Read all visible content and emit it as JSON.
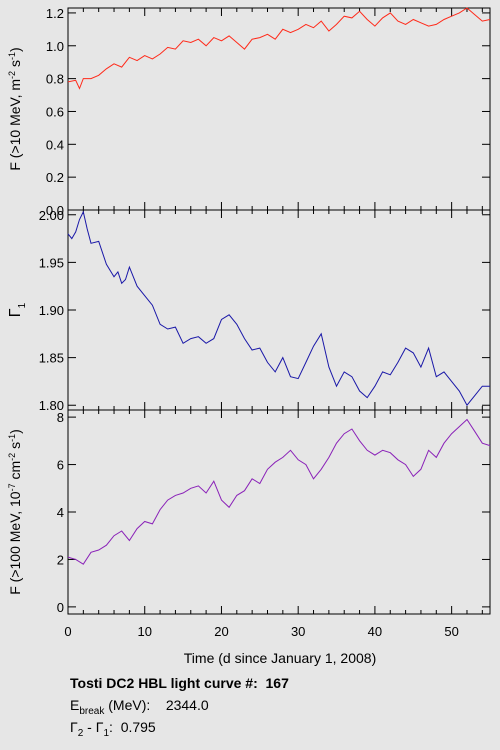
{
  "chart_data": [
    {
      "type": "line",
      "ylabel": "F (>10 MeV, m-2 s-1)",
      "ylabel_parts": [
        "F (>10 MeV, m",
        "-2",
        " s",
        "-1",
        ")"
      ],
      "ylim": [
        0,
        1.23
      ],
      "yticks": [
        "0.0",
        "0.2",
        "0.4",
        "0.6",
        "0.8",
        "1.0",
        "1.2"
      ],
      "color": "#ff2a1a",
      "series": [
        {
          "x": [
            0,
            1,
            1.5,
            2,
            3,
            4,
            5,
            6,
            7,
            8,
            9,
            10,
            11,
            12,
            13,
            14,
            15,
            16,
            17,
            18,
            19,
            20,
            21,
            22,
            23,
            24,
            25,
            26,
            27,
            28,
            29,
            30,
            31,
            32,
            33,
            34,
            35,
            36,
            37,
            38,
            39,
            40,
            41,
            42,
            43,
            44,
            45,
            46,
            47,
            48,
            49,
            50,
            51,
            52,
            53,
            54,
            55
          ],
          "values": [
            0.78,
            0.79,
            0.74,
            0.8,
            0.8,
            0.82,
            0.86,
            0.89,
            0.87,
            0.93,
            0.91,
            0.94,
            0.92,
            0.95,
            0.99,
            0.98,
            1.03,
            1.02,
            1.04,
            1.0,
            1.05,
            1.03,
            1.06,
            1.02,
            0.98,
            1.04,
            1.05,
            1.07,
            1.04,
            1.1,
            1.08,
            1.1,
            1.13,
            1.11,
            1.15,
            1.09,
            1.13,
            1.18,
            1.17,
            1.21,
            1.16,
            1.12,
            1.17,
            1.2,
            1.15,
            1.13,
            1.16,
            1.14,
            1.12,
            1.13,
            1.16,
            1.18,
            1.2,
            1.23,
            1.19,
            1.15,
            1.16
          ]
        }
      ]
    },
    {
      "type": "line",
      "ylabel": "Γ1",
      "ylabel_main": "Γ",
      "ylabel_sub": "1",
      "ylim": [
        1.795,
        2.005
      ],
      "yticks": [
        "1.80",
        "1.85",
        "1.90",
        "1.95",
        "2.00"
      ],
      "color": "#1a18a8",
      "series": [
        {
          "x": [
            0,
            0.5,
            1,
            1.5,
            2,
            2.5,
            3,
            4,
            5,
            6,
            6.5,
            7,
            7.5,
            8,
            9,
            10,
            11,
            12,
            13,
            14,
            15,
            16,
            17,
            18,
            19,
            20,
            21,
            22,
            23,
            24,
            25,
            26,
            27,
            28,
            29,
            30,
            31,
            32,
            33,
            34,
            35,
            36,
            37,
            38,
            39,
            40,
            41,
            42,
            43,
            44,
            45,
            46,
            47,
            48,
            49,
            50,
            51,
            52,
            53,
            54,
            55
          ],
          "values": [
            1.98,
            1.975,
            1.982,
            1.995,
            2.003,
            1.985,
            1.97,
            1.972,
            1.948,
            1.935,
            1.94,
            1.928,
            1.932,
            1.945,
            1.925,
            1.915,
            1.905,
            1.885,
            1.88,
            1.882,
            1.865,
            1.87,
            1.872,
            1.865,
            1.87,
            1.89,
            1.895,
            1.885,
            1.87,
            1.858,
            1.86,
            1.845,
            1.835,
            1.85,
            1.83,
            1.828,
            1.845,
            1.862,
            1.875,
            1.84,
            1.82,
            1.835,
            1.83,
            1.815,
            1.808,
            1.82,
            1.835,
            1.832,
            1.845,
            1.86,
            1.855,
            1.84,
            1.86,
            1.83,
            1.835,
            1.825,
            1.815,
            1.8,
            1.81,
            1.82,
            1.82
          ]
        }
      ]
    },
    {
      "type": "line",
      "xlabel": "Time (d since January 1, 2008)",
      "ylabel": "F (>100 MeV, 10-7 cm-2 s-1)",
      "ylabel_parts": [
        "F (>100 MeV, 10",
        "-7",
        " cm",
        "-2",
        " s",
        "-1",
        ")"
      ],
      "xlim": [
        0,
        55
      ],
      "xticks": [
        "0",
        "10",
        "20",
        "30",
        "40",
        "50"
      ],
      "ylim": [
        -0.3,
        8.3
      ],
      "yticks": [
        "0",
        "2",
        "4",
        "6",
        "8"
      ],
      "color": "#8a22b8",
      "series": [
        {
          "x": [
            0,
            1,
            2,
            3,
            4,
            5,
            6,
            7,
            8,
            9,
            10,
            11,
            12,
            13,
            14,
            15,
            16,
            17,
            18,
            19,
            20,
            21,
            22,
            23,
            24,
            25,
            26,
            27,
            28,
            29,
            30,
            31,
            32,
            33,
            34,
            35,
            36,
            37,
            38,
            39,
            40,
            41,
            42,
            43,
            44,
            45,
            46,
            47,
            48,
            49,
            50,
            51,
            52,
            53,
            54,
            55
          ],
          "values": [
            2.1,
            2.0,
            1.8,
            2.3,
            2.4,
            2.6,
            3.0,
            3.2,
            2.8,
            3.3,
            3.6,
            3.5,
            4.1,
            4.5,
            4.7,
            4.8,
            5.0,
            5.1,
            4.8,
            5.3,
            4.5,
            4.2,
            4.7,
            4.9,
            5.4,
            5.2,
            5.8,
            6.1,
            6.3,
            6.6,
            6.2,
            6.0,
            5.4,
            5.8,
            6.3,
            6.9,
            7.3,
            7.5,
            7.0,
            6.6,
            6.4,
            6.6,
            6.5,
            6.2,
            6.0,
            5.5,
            5.8,
            6.6,
            6.3,
            6.9,
            7.3,
            7.6,
            7.9,
            7.4,
            6.9,
            6.8
          ]
        }
      ]
    }
  ],
  "caption": {
    "title_label": "Tosti DC2 HBL light curve #:",
    "title_value": "167",
    "ebreak_main": "E",
    "ebreak_sub": "break",
    "ebreak_unit": " (MeV):",
    "ebreak_value": "2344.0",
    "gamma_diff_a_main": "Γ",
    "gamma_diff_a_sub": "2",
    "gamma_diff_sep": " - ",
    "gamma_diff_b_main": "Γ",
    "gamma_diff_b_sub": "1",
    "gamma_diff_colon": ":",
    "gamma_diff_value": "0.795"
  }
}
